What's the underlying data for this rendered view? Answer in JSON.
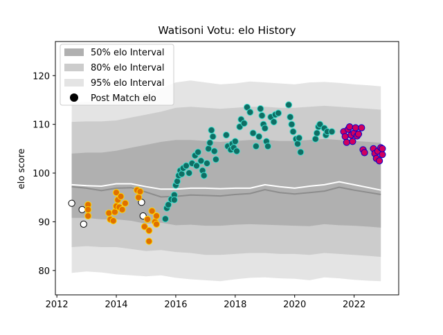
{
  "chart_data": {
    "type": "scatter",
    "title": "Watisoni Votu: elo History",
    "xlabel": "",
    "ylabel": "elo score",
    "xlim": [
      2011.95,
      2023.5
    ],
    "ylim": [
      75,
      127
    ],
    "x_ticks": [
      2012,
      2014,
      2016,
      2018,
      2020,
      2022
    ],
    "y_ticks": [
      80,
      90,
      100,
      110,
      120
    ],
    "grid": false,
    "legend": {
      "placement": "top-left",
      "entries": [
        "50% elo Interval",
        "80% elo Interval",
        "95% elo Interval",
        "Post Match elo"
      ]
    },
    "colors": {
      "band95": "#e4e4e4",
      "band80": "#cccccc",
      "band50": "#b0b0b0",
      "median_line": "#8c8c8c",
      "mean_line": "#ffffff"
    },
    "band_x": [
      2012.5,
      2013.0,
      2013.5,
      2014.0,
      2014.5,
      2015.0,
      2015.5,
      2016.0,
      2016.5,
      2017.0,
      2017.5,
      2018.0,
      2018.5,
      2019.0,
      2019.5,
      2020.0,
      2020.5,
      2021.0,
      2021.5,
      2022.0,
      2022.5,
      2022.9
    ],
    "band95_low": [
      79.5,
      79.8,
      79.6,
      79.2,
      79.0,
      78.8,
      79.0,
      78.5,
      78.2,
      78.0,
      77.8,
      78.2,
      78.5,
      78.6,
      78.4,
      78.3,
      78.0,
      78.6,
      78.4,
      78.1,
      77.9,
      77.8
    ],
    "band95_high": [
      114.5,
      114.6,
      114.8,
      115.0,
      115.8,
      116.5,
      117.4,
      118.6,
      119.0,
      118.6,
      118.2,
      118.4,
      118.8,
      118.6,
      118.4,
      118.2,
      118.6,
      118.7,
      118.5,
      118.2,
      118.0,
      117.8
    ],
    "band80_low": [
      84.8,
      85.0,
      84.8,
      84.8,
      84.4,
      84.0,
      84.2,
      83.8,
      83.6,
      83.2,
      83.2,
      83.4,
      83.6,
      83.6,
      83.4,
      83.4,
      83.2,
      83.6,
      83.4,
      83.2,
      83.0,
      82.8
    ],
    "band80_high": [
      110.5,
      110.6,
      110.6,
      110.8,
      111.4,
      112.0,
      112.6,
      113.4,
      113.6,
      113.4,
      113.2,
      113.4,
      113.6,
      113.6,
      113.4,
      113.4,
      113.6,
      113.8,
      113.6,
      113.4,
      113.2,
      113.0
    ],
    "band50_low": [
      90.8,
      90.8,
      90.5,
      90.5,
      90.2,
      89.6,
      89.8,
      89.3,
      89.4,
      89.2,
      89.2,
      89.4,
      89.5,
      89.4,
      89.3,
      89.2,
      89.1,
      89.5,
      89.3,
      89.2,
      89.0,
      88.8
    ],
    "band50_high": [
      104.0,
      104.2,
      104.2,
      104.6,
      105.2,
      105.8,
      106.4,
      106.8,
      106.8,
      106.6,
      106.4,
      106.6,
      106.8,
      106.8,
      106.6,
      106.6,
      106.8,
      107.0,
      106.8,
      106.6,
      106.4,
      106.2
    ],
    "mean_line": [
      97.6,
      97.4,
      97.3,
      97.8,
      97.8,
      97.2,
      96.7,
      96.7,
      96.9,
      96.9,
      96.8,
      96.9,
      96.9,
      97.6,
      97.2,
      96.9,
      97.3,
      97.6,
      98.2,
      97.6,
      97.0,
      96.5
    ],
    "median_line": [
      97.2,
      96.9,
      96.4,
      96.9,
      97.0,
      96.1,
      95.1,
      95.2,
      95.5,
      95.4,
      95.3,
      95.6,
      95.8,
      96.6,
      96.0,
      95.7,
      96.0,
      96.3,
      97.1,
      96.5,
      96.0,
      95.6
    ],
    "series": [
      {
        "fill": "#ffffff",
        "edge": "#000000",
        "points": [
          [
            2012.5,
            93.8
          ],
          [
            2012.85,
            92.5
          ],
          [
            2012.9,
            89.5
          ],
          [
            2014.85,
            94.0
          ],
          [
            2014.9,
            91.2
          ]
        ]
      },
      {
        "fill": "#e07000",
        "edge": "#ffd700",
        "points": [
          [
            2013.05,
            93.5
          ],
          [
            2013.05,
            92.5
          ],
          [
            2013.05,
            91.2
          ],
          [
            2013.75,
            91.8
          ],
          [
            2013.8,
            90.5
          ],
          [
            2013.9,
            90.2
          ],
          [
            2013.95,
            92.0
          ],
          [
            2014.0,
            93.2
          ],
          [
            2014.0,
            96.0
          ],
          [
            2014.05,
            94.5
          ],
          [
            2014.1,
            93.0
          ],
          [
            2014.15,
            95.2
          ],
          [
            2014.2,
            92.5
          ],
          [
            2014.3,
            93.8
          ],
          [
            2014.7,
            96.5
          ],
          [
            2014.75,
            95.0
          ],
          [
            2014.8,
            96.2
          ],
          [
            2014.95,
            89.0
          ],
          [
            2015.05,
            90.5
          ],
          [
            2015.1,
            88.2
          ],
          [
            2015.1,
            86.0
          ],
          [
            2015.2,
            92.2
          ],
          [
            2015.3,
            90.0
          ],
          [
            2015.35,
            91.2
          ],
          [
            2015.35,
            89.5
          ]
        ]
      },
      {
        "fill": "#0f6e64",
        "edge": "#40e0d0",
        "points": [
          [
            2015.65,
            90.6
          ],
          [
            2015.7,
            92.8
          ],
          [
            2015.75,
            93.5
          ],
          [
            2015.85,
            94.6
          ],
          [
            2015.95,
            95.5
          ],
          [
            2015.95,
            94.5
          ],
          [
            2016.0,
            97.5
          ],
          [
            2016.05,
            98.3
          ],
          [
            2016.1,
            99.5
          ],
          [
            2016.15,
            100.5
          ],
          [
            2016.2,
            99.8
          ],
          [
            2016.25,
            101.0
          ],
          [
            2016.35,
            101.5
          ],
          [
            2016.45,
            100.0
          ],
          [
            2016.55,
            102.0
          ],
          [
            2016.65,
            103.6
          ],
          [
            2016.7,
            101.5
          ],
          [
            2016.75,
            104.3
          ],
          [
            2016.85,
            102.5
          ],
          [
            2016.9,
            100.5
          ],
          [
            2016.95,
            99.5
          ],
          [
            2017.05,
            102.0
          ],
          [
            2017.1,
            105.0
          ],
          [
            2017.15,
            106.2
          ],
          [
            2017.2,
            108.8
          ],
          [
            2017.25,
            107.5
          ],
          [
            2017.3,
            104.5
          ],
          [
            2017.35,
            102.8
          ],
          [
            2017.7,
            107.8
          ],
          [
            2017.75,
            105.5
          ],
          [
            2017.85,
            104.8
          ],
          [
            2017.9,
            106.0
          ],
          [
            2017.95,
            105.2
          ],
          [
            2018.0,
            106.5
          ],
          [
            2018.05,
            104.5
          ],
          [
            2018.15,
            109.5
          ],
          [
            2018.2,
            111.0
          ],
          [
            2018.3,
            110.2
          ],
          [
            2018.4,
            113.5
          ],
          [
            2018.5,
            112.5
          ],
          [
            2018.6,
            108.2
          ],
          [
            2018.7,
            105.5
          ],
          [
            2018.8,
            107.5
          ],
          [
            2018.85,
            113.2
          ],
          [
            2018.9,
            111.8
          ],
          [
            2018.95,
            110.0
          ],
          [
            2019.0,
            109.2
          ],
          [
            2019.05,
            106.5
          ],
          [
            2019.1,
            105.5
          ],
          [
            2019.2,
            111.5
          ],
          [
            2019.3,
            110.5
          ],
          [
            2019.35,
            112.0
          ],
          [
            2019.45,
            112.3
          ],
          [
            2019.8,
            114.0
          ],
          [
            2019.85,
            111.5
          ],
          [
            2019.9,
            110.0
          ],
          [
            2019.95,
            108.5
          ],
          [
            2020.05,
            107.0
          ],
          [
            2020.1,
            106.0
          ],
          [
            2020.15,
            107.2
          ],
          [
            2020.2,
            104.3
          ],
          [
            2020.7,
            107.0
          ],
          [
            2020.75,
            108.2
          ],
          [
            2020.8,
            109.5
          ],
          [
            2020.85,
            110.0
          ],
          [
            2021.0,
            109.2
          ],
          [
            2021.05,
            107.8
          ],
          [
            2021.1,
            108.5
          ],
          [
            2021.25,
            108.5
          ]
        ]
      },
      {
        "fill": "#d1005e",
        "edge": "#0000cc",
        "points": [
          [
            2021.65,
            108.5
          ],
          [
            2021.7,
            107.5
          ],
          [
            2021.75,
            106.3
          ],
          [
            2021.8,
            109.0
          ],
          [
            2021.85,
            109.5
          ],
          [
            2021.9,
            107.8
          ],
          [
            2021.95,
            106.5
          ],
          [
            2022.0,
            108.2
          ],
          [
            2022.05,
            109.3
          ],
          [
            2022.1,
            107.6
          ],
          [
            2022.15,
            108.0
          ],
          [
            2022.25,
            109.3
          ],
          [
            2022.3,
            104.8
          ],
          [
            2022.35,
            104.2
          ],
          [
            2022.65,
            105.0
          ],
          [
            2022.7,
            104.0
          ],
          [
            2022.75,
            103.0
          ],
          [
            2022.8,
            104.5
          ],
          [
            2022.85,
            102.5
          ],
          [
            2022.9,
            105.2
          ],
          [
            2022.95,
            103.8
          ],
          [
            2022.95,
            105.0
          ]
        ]
      }
    ]
  }
}
